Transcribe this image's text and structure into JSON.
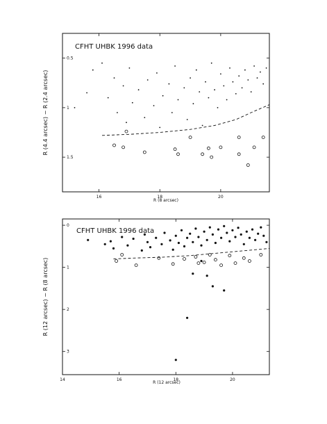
{
  "chart_data": [
    {
      "type": "scatter",
      "title": "CFHT UHBK 1996 data",
      "xlabel": "R (8 arcsec)",
      "ylabel": "R (4.4 arcsec) − R (2.4 arcsec)",
      "xlim": [
        14.8,
        21.6
      ],
      "ylim": [
        1.85,
        0.25
      ],
      "x_ticks": [
        16,
        18,
        20
      ],
      "x_tick_labels": [
        "16",
        "18",
        "20"
      ],
      "y_ticks": [
        0.5,
        1,
        1.5
      ],
      "y_tick_labels": [
        "0.5",
        "1",
        "1.5"
      ],
      "legend": "none",
      "grid": false,
      "series": [
        {
          "marker": "dot",
          "points": [
            [
              15.2,
              1.0
            ],
            [
              15.6,
              0.85
            ],
            [
              15.8,
              0.62
            ],
            [
              16.1,
              0.55
            ],
            [
              16.3,
              0.9
            ],
            [
              16.5,
              0.7
            ],
            [
              16.6,
              1.05
            ],
            [
              16.8,
              0.78
            ],
            [
              16.9,
              1.15
            ],
            [
              17.0,
              0.6
            ],
            [
              17.1,
              0.95
            ],
            [
              17.3,
              0.82
            ],
            [
              17.5,
              1.1
            ],
            [
              17.6,
              0.72
            ],
            [
              17.8,
              0.98
            ],
            [
              17.9,
              0.65
            ],
            [
              18.0,
              1.2
            ],
            [
              18.1,
              0.88
            ],
            [
              18.3,
              0.76
            ],
            [
              18.4,
              1.05
            ],
            [
              18.5,
              0.58
            ],
            [
              18.6,
              0.92
            ],
            [
              18.8,
              0.8
            ],
            [
              18.9,
              1.12
            ],
            [
              19.0,
              0.7
            ],
            [
              19.1,
              0.96
            ],
            [
              19.2,
              0.62
            ],
            [
              19.3,
              0.84
            ],
            [
              19.4,
              1.18
            ],
            [
              19.5,
              0.74
            ],
            [
              19.6,
              0.9
            ],
            [
              19.7,
              0.55
            ],
            [
              19.8,
              0.82
            ],
            [
              19.9,
              1.0
            ],
            [
              20.0,
              0.66
            ],
            [
              20.1,
              0.78
            ],
            [
              20.2,
              0.92
            ],
            [
              20.3,
              0.6
            ],
            [
              20.4,
              0.74
            ],
            [
              20.5,
              0.86
            ],
            [
              20.6,
              0.68
            ],
            [
              20.7,
              0.8
            ],
            [
              20.8,
              0.62
            ],
            [
              20.9,
              0.72
            ],
            [
              21.0,
              0.84
            ],
            [
              21.1,
              0.58
            ],
            [
              21.2,
              0.7
            ],
            [
              21.3,
              0.64
            ],
            [
              21.4,
              0.76
            ],
            [
              21.5,
              0.6
            ]
          ]
        }
      ],
      "open_circles": [
        [
          16.5,
          1.38
        ],
        [
          16.8,
          1.4
        ],
        [
          16.9,
          1.24
        ],
        [
          17.5,
          1.45
        ],
        [
          18.5,
          1.42
        ],
        [
          18.6,
          1.47
        ],
        [
          19.0,
          1.3
        ],
        [
          19.4,
          1.47
        ],
        [
          19.6,
          1.41
        ],
        [
          19.7,
          1.5
        ],
        [
          20.0,
          1.4
        ],
        [
          20.6,
          1.3
        ],
        [
          20.6,
          1.47
        ],
        [
          21.1,
          1.4
        ],
        [
          21.4,
          1.3
        ],
        [
          20.9,
          1.58
        ]
      ],
      "dashed_curve": [
        [
          16.1,
          1.28
        ],
        [
          17.0,
          1.27
        ],
        [
          18.0,
          1.25
        ],
        [
          19.0,
          1.22
        ],
        [
          19.8,
          1.18
        ],
        [
          20.5,
          1.12
        ],
        [
          21.0,
          1.05
        ],
        [
          21.6,
          0.97
        ]
      ]
    },
    {
      "type": "scatter",
      "title": "CFHT UHBK 1996 data",
      "xlabel": "R (12 arcsec)",
      "ylabel": "R (12 arcsec) − R (8 arcsec)",
      "xlim": [
        14.0,
        21.3
      ],
      "ylim": [
        3.55,
        -0.15
      ],
      "x_ticks": [
        14,
        16,
        18,
        20
      ],
      "x_tick_labels": [
        "14",
        "16",
        "18",
        "20"
      ],
      "y_ticks": [
        0,
        1,
        2,
        3
      ],
      "y_tick_labels": [
        "0",
        "1",
        "2",
        "3"
      ],
      "legend": "none",
      "grid": false,
      "series": [
        {
          "marker": "filled",
          "points": [
            [
              14.9,
              0.35
            ],
            [
              15.5,
              0.45
            ],
            [
              15.7,
              0.38
            ],
            [
              15.8,
              0.55
            ],
            [
              16.1,
              0.28
            ],
            [
              16.3,
              0.48
            ],
            [
              16.5,
              0.32
            ],
            [
              16.8,
              0.6
            ],
            [
              16.9,
              0.22
            ],
            [
              17.0,
              0.4
            ],
            [
              17.1,
              0.52
            ],
            [
              17.3,
              0.3
            ],
            [
              17.5,
              0.45
            ],
            [
              17.6,
              0.18
            ],
            [
              17.8,
              0.36
            ],
            [
              17.9,
              0.58
            ],
            [
              18.0,
              0.25
            ],
            [
              18.1,
              0.42
            ],
            [
              18.2,
              0.12
            ],
            [
              18.3,
              0.5
            ],
            [
              18.4,
              0.3
            ],
            [
              18.5,
              0.2
            ],
            [
              18.6,
              0.4
            ],
            [
              18.7,
              0.08
            ],
            [
              18.8,
              0.28
            ],
            [
              18.9,
              0.48
            ],
            [
              19.0,
              0.15
            ],
            [
              19.1,
              0.35
            ],
            [
              19.2,
              0.05
            ],
            [
              19.3,
              0.22
            ],
            [
              19.4,
              0.42
            ],
            [
              19.5,
              0.1
            ],
            [
              19.6,
              0.3
            ],
            [
              19.7,
              0.02
            ],
            [
              19.8,
              0.18
            ],
            [
              19.9,
              0.38
            ],
            [
              20.0,
              0.12
            ],
            [
              20.1,
              0.28
            ],
            [
              20.2,
              0.06
            ],
            [
              20.3,
              0.22
            ],
            [
              20.4,
              0.45
            ],
            [
              20.5,
              0.15
            ],
            [
              20.6,
              0.3
            ],
            [
              20.7,
              0.1
            ],
            [
              20.8,
              0.35
            ],
            [
              20.9,
              0.2
            ],
            [
              21.0,
              0.05
            ],
            [
              21.1,
              0.25
            ],
            [
              21.2,
              0.4
            ],
            [
              18.6,
              1.15
            ],
            [
              19.3,
              1.45
            ],
            [
              19.7,
              1.55
            ],
            [
              18.4,
              2.2
            ],
            [
              18.0,
              3.2
            ],
            [
              18.9,
              0.85
            ],
            [
              19.1,
              1.2
            ]
          ]
        }
      ],
      "open_circles": [
        [
          15.9,
          0.85
        ],
        [
          16.1,
          0.7
        ],
        [
          16.6,
          0.95
        ],
        [
          17.4,
          0.78
        ],
        [
          17.9,
          0.92
        ],
        [
          18.3,
          0.8
        ],
        [
          18.7,
          0.75
        ],
        [
          18.8,
          0.9
        ],
        [
          19.0,
          0.88
        ],
        [
          19.2,
          0.7
        ],
        [
          19.4,
          0.82
        ],
        [
          19.6,
          0.95
        ],
        [
          19.9,
          0.72
        ],
        [
          20.1,
          0.9
        ],
        [
          20.4,
          0.78
        ],
        [
          20.6,
          0.85
        ],
        [
          21.0,
          0.7
        ]
      ],
      "dashed_curve": [
        [
          15.8,
          0.8
        ],
        [
          16.5,
          0.78
        ],
        [
          17.5,
          0.76
        ],
        [
          18.5,
          0.72
        ],
        [
          19.5,
          0.66
        ],
        [
          20.5,
          0.6
        ],
        [
          21.3,
          0.55
        ]
      ]
    }
  ]
}
